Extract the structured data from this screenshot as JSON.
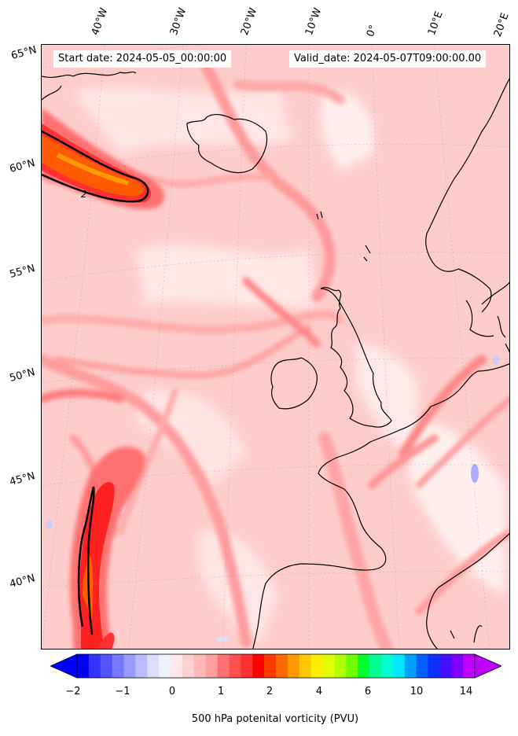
{
  "header": {
    "start_date": "Start date: 2024-05-05_00:00:00",
    "valid_date": "Valid_date: 2024-05-07T09:00:00.00"
  },
  "axes": {
    "longitude_labels": [
      "40°W",
      "30°W",
      "20°W",
      "10°W",
      "0°",
      "10°E",
      "20°E"
    ],
    "latitude_labels": [
      "65°N",
      "60°N",
      "55°N",
      "50°N",
      "45°N",
      "40°N"
    ]
  },
  "colorbar": {
    "label": "500 hPa potenital vorticity (PVU)",
    "ticks": [
      "−2",
      "−1",
      "0",
      "1",
      "2",
      "4",
      "6",
      "10",
      "14"
    ],
    "colors": [
      "#0000ff",
      "#3333ff",
      "#5555ff",
      "#7777ff",
      "#9999ff",
      "#bbbbff",
      "#ddddff",
      "#f2f2ff",
      "#ffe8e8",
      "#ffd0d0",
      "#ffb8b8",
      "#ffa0a0",
      "#ff7070",
      "#ff5050",
      "#ff3030",
      "#ff0000",
      "#ff3a00",
      "#ff6a00",
      "#ff9900",
      "#ffc800",
      "#ffee00",
      "#e0ff00",
      "#b0ff00",
      "#70ff00",
      "#00ff30",
      "#00ff90",
      "#00ffd0",
      "#00e8ff",
      "#00a0ff",
      "#0060ff",
      "#1030ff",
      "#4010ff",
      "#8000ff",
      "#c000ff"
    ]
  },
  "contour_label": "2"
}
